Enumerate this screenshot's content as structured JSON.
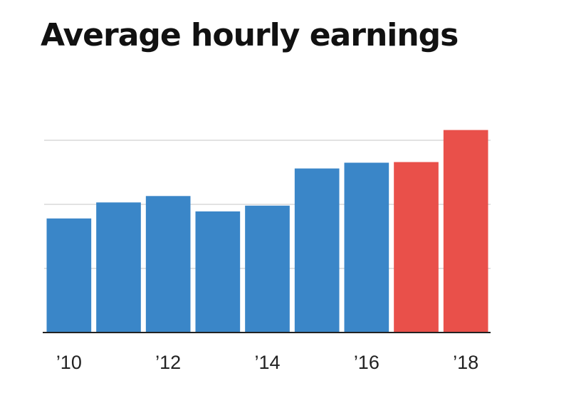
{
  "chart_data": {
    "type": "bar",
    "title": "Average hourly earnings",
    "xlabel": "",
    "ylabel": "",
    "categories": [
      "2010",
      "2011",
      "2012",
      "2013",
      "2014",
      "2015",
      "2016",
      "2017",
      "2018"
    ],
    "values": [
      1.78,
      2.03,
      2.13,
      1.89,
      1.98,
      2.56,
      2.65,
      2.66,
      3.16
    ],
    "bar_colors": [
      "#3a86c8",
      "#3a86c8",
      "#3a86c8",
      "#3a86c8",
      "#3a86c8",
      "#3a86c8",
      "#3a86c8",
      "#e9504a",
      "#e9504a"
    ],
    "x_tick_labels": [
      {
        "category": "2010",
        "label": "’10"
      },
      {
        "category": "2012",
        "label": "’12"
      },
      {
        "category": "2014",
        "label": "’14"
      },
      {
        "category": "2016",
        "label": "’16"
      },
      {
        "category": "2018",
        "label": "’18"
      }
    ],
    "ylim": [
      0,
      3.2
    ],
    "y_gridlines": [
      1,
      2,
      3
    ],
    "y_tick_labels_shown": false,
    "grid": true,
    "legend": "none"
  },
  "colors": {
    "baseline": "#222222",
    "gridline": "#d8d8d8",
    "background": "#ffffff"
  }
}
